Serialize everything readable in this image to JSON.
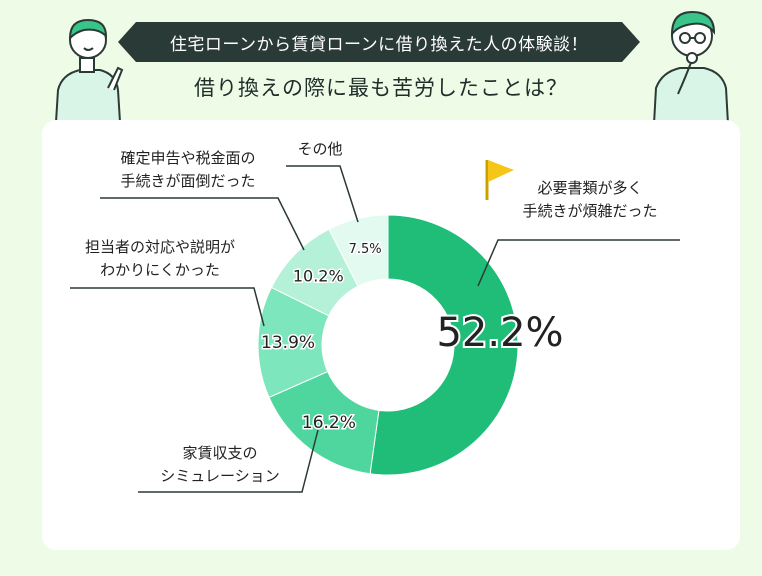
{
  "header": {
    "banner_text": "住宅ローンから賃貸ローンに借り換えた人の体験談！",
    "question": "借り換えの際に最も苦労したことは？"
  },
  "chart_data": {
    "type": "pie",
    "donut": true,
    "slices": [
      {
        "label_lines": [
          "必要書類が多く",
          "手続きが煩雑だった"
        ],
        "value": 52.2,
        "value_text": "52.2%",
        "color": "#1fbd78"
      },
      {
        "label_lines": [
          "家賃収支の",
          "シミュレーション"
        ],
        "value": 16.2,
        "value_text": "16.2%",
        "color": "#4fd69e"
      },
      {
        "label_lines": [
          "担当者の対応や説明が",
          "わかりにくかった"
        ],
        "value": 13.9,
        "value_text": "13.9%",
        "color": "#7ee6bd"
      },
      {
        "label_lines": [
          "確定申告や税金面の",
          "手続きが面倒だった"
        ],
        "value": 10.2,
        "value_text": "10.2%",
        "color": "#b5f1d8"
      },
      {
        "label_lines": [
          "その他"
        ],
        "value": 7.5,
        "value_text": "7.5%",
        "color": "#e2faf0"
      }
    ]
  },
  "colors": {
    "background": "#eefbe6",
    "banner": "#2a3b37",
    "card": "#ffffff",
    "flag": "#f5c518",
    "leader_line": "#2b3a36"
  },
  "icons": {
    "left_person": "pointing-person-illustration",
    "right_person": "thinking-person-illustration",
    "flag": "flag-icon"
  }
}
